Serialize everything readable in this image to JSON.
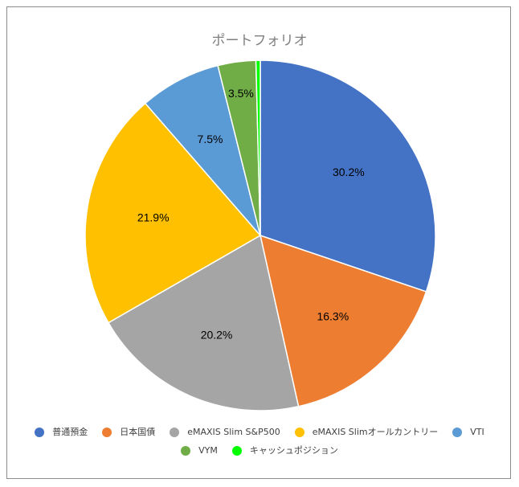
{
  "chart_data": {
    "type": "pie",
    "title": "ポートフォリオ",
    "categories": [
      "普通預金",
      "日本国債",
      "eMAXIS Slim S&P500",
      "eMAXIS Slimオールカントリー",
      "VTI",
      "VYM",
      "キャッシュポジション"
    ],
    "values": [
      30.2,
      16.3,
      20.2,
      21.9,
      7.5,
      3.5,
      0.4
    ],
    "labels": [
      "30.2%",
      "16.3%",
      "20.2%",
      "21.9%",
      "7.5%",
      "3.5%",
      ""
    ],
    "colors": [
      "#4472C4",
      "#ED7D31",
      "#A5A5A5",
      "#FFC000",
      "#5B9BD5",
      "#70AD47",
      "#00FF00"
    ],
    "legend_position": "bottom"
  }
}
